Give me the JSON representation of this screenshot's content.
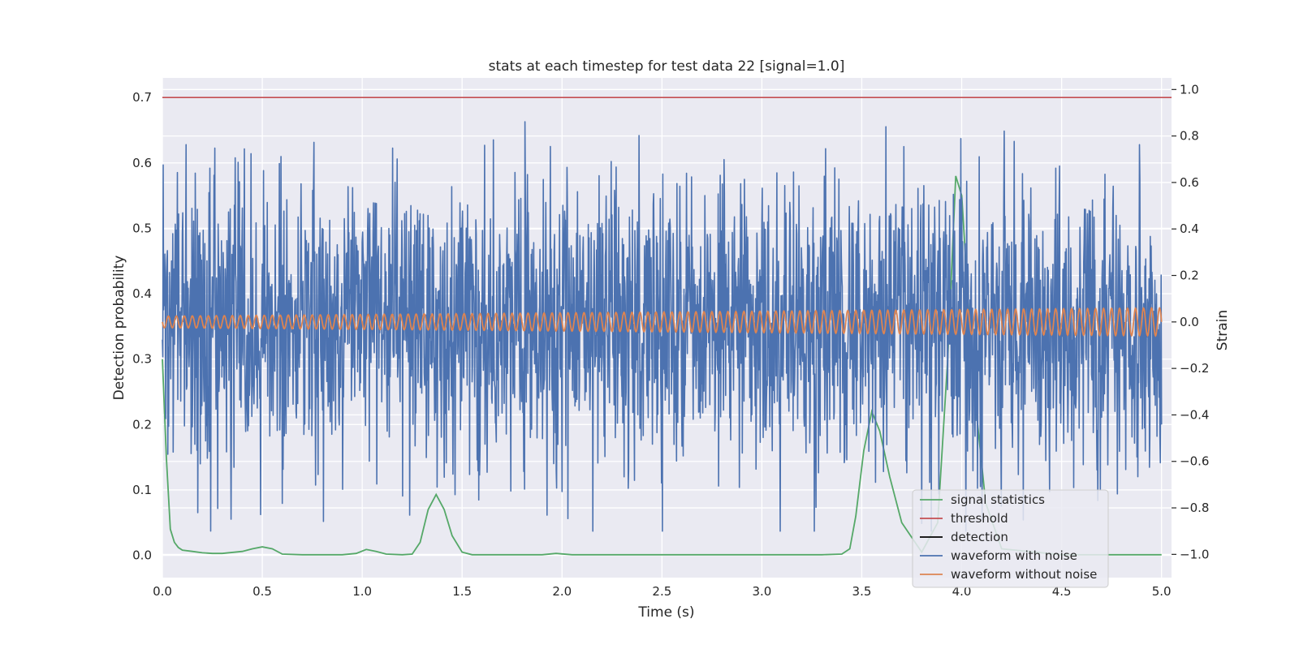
{
  "chart_data": {
    "type": "line",
    "title": "stats at each timestep for test data 22 [signal=1.0]",
    "xlabel": "Time (s)",
    "ylabel_left": "Detection probability",
    "ylabel_right": "Strain",
    "xlim": [
      0.0,
      5.05
    ],
    "ylim_left": [
      -0.034,
      0.73
    ],
    "ylim_right": [
      -1.1,
      1.05
    ],
    "xticks": [
      "0.0",
      "0.5",
      "1.0",
      "1.5",
      "2.0",
      "2.5",
      "3.0",
      "3.5",
      "4.0",
      "4.5",
      "5.0"
    ],
    "yticks_left": [
      "0.0",
      "0.1",
      "0.2",
      "0.3",
      "0.4",
      "0.5",
      "0.6",
      "0.7"
    ],
    "yticks_right": [
      "−1.0",
      "−0.8",
      "−0.6",
      "−0.4",
      "−0.2",
      "0.0",
      "0.2",
      "0.4",
      "0.6",
      "0.8",
      "1.0"
    ],
    "grid": true,
    "legend_position": "lower-right",
    "colors": {
      "signal_statistics": "#55a868",
      "threshold": "#c44e52",
      "detection": "#000000",
      "waveform_with_noise": "#4c72b0",
      "waveform_without_noise": "#dd8452",
      "plot_background": "#eaeaf2",
      "grid": "#ffffff"
    },
    "series": [
      {
        "name": "signal statistics",
        "axis": "left",
        "x": [
          0.0,
          0.02,
          0.04,
          0.06,
          0.08,
          0.1,
          0.15,
          0.2,
          0.25,
          0.3,
          0.4,
          0.45,
          0.5,
          0.55,
          0.6,
          0.7,
          0.8,
          0.9,
          0.97,
          1.02,
          1.07,
          1.12,
          1.2,
          1.25,
          1.29,
          1.33,
          1.37,
          1.41,
          1.45,
          1.5,
          1.55,
          1.7,
          1.9,
          1.97,
          2.05,
          2.5,
          3.0,
          3.3,
          3.4,
          3.44,
          3.47,
          3.51,
          3.55,
          3.59,
          3.64,
          3.7,
          3.8,
          3.88,
          3.93,
          3.97,
          4.0,
          4.05,
          4.08,
          4.12,
          4.2,
          4.5,
          5.0
        ],
        "values": [
          0.3,
          0.15,
          0.04,
          0.02,
          0.012,
          0.008,
          0.006,
          0.004,
          0.003,
          0.003,
          0.006,
          0.01,
          0.013,
          0.01,
          0.002,
          0.001,
          0.001,
          0.001,
          0.003,
          0.009,
          0.006,
          0.002,
          0.001,
          0.002,
          0.02,
          0.07,
          0.093,
          0.07,
          0.03,
          0.005,
          0.001,
          0.001,
          0.001,
          0.003,
          0.001,
          0.001,
          0.001,
          0.001,
          0.002,
          0.01,
          0.06,
          0.16,
          0.22,
          0.19,
          0.12,
          0.05,
          0.005,
          0.05,
          0.3,
          0.58,
          0.55,
          0.3,
          0.2,
          0.08,
          0.01,
          0.001,
          0.001
        ]
      },
      {
        "name": "threshold",
        "axis": "left",
        "x": [
          0.0,
          5.05
        ],
        "values": [
          0.7,
          0.7
        ]
      },
      {
        "name": "detection",
        "axis": "left",
        "x": [],
        "values": []
      },
      {
        "name": "waveform with noise",
        "axis": "right",
        "x_range": [
          0.0,
          5.0
        ],
        "envelope_min": -0.9,
        "envelope_max": 0.94,
        "typical_range": [
          -0.55,
          0.55
        ]
      },
      {
        "name": "waveform without noise",
        "axis": "right",
        "x_range": [
          0.0,
          5.0
        ],
        "frequency_hz": 25,
        "amplitude_start": 0.025,
        "amplitude_end": 0.06
      }
    ]
  }
}
